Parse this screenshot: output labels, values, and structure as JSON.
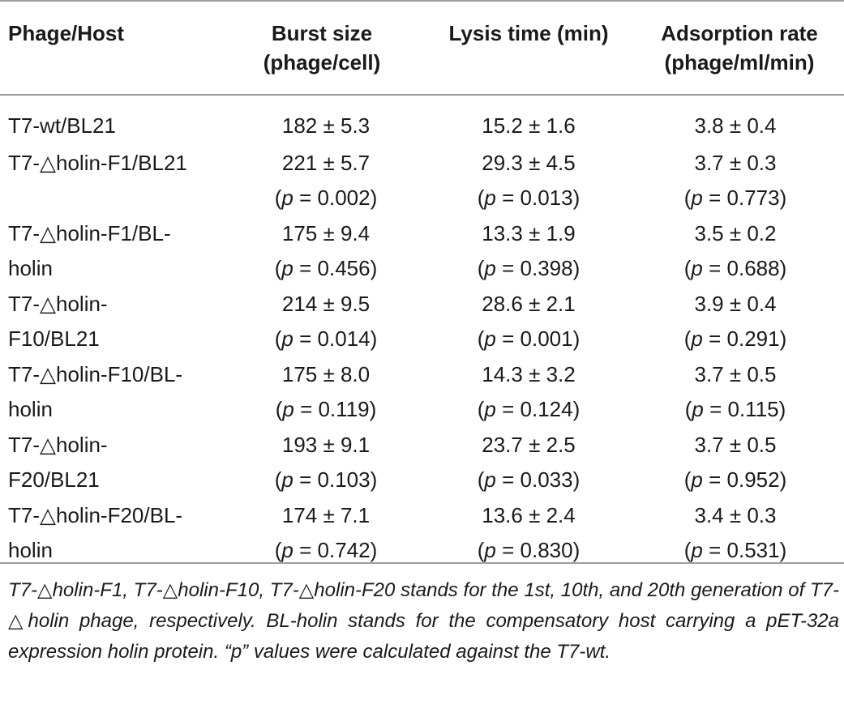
{
  "headers": {
    "phage_host": "Phage/Host",
    "burst_line1": "Burst size",
    "burst_line2": "(phage/cell)",
    "lysis": "Lysis time (min)",
    "adsorption_line1": "Adsorption rate",
    "adsorption_line2": "(phage/ml/min)"
  },
  "rows": [
    {
      "name_line1": "T7-wt/BL21",
      "name_line2": "",
      "burst": "182 ± 5.3",
      "burst_p": "",
      "lysis": "15.2 ± 1.6",
      "lysis_p": "",
      "adsorption": "3.8 ± 0.4",
      "adsorption_p": ""
    },
    {
      "name_line1": "T7-△holin-F1/BL21",
      "name_line2": "",
      "burst": "221 ± 5.7",
      "burst_p": "= 0.002)",
      "lysis": "29.3 ± 4.5",
      "lysis_p": "= 0.013)",
      "adsorption": "3.7 ± 0.3",
      "adsorption_p": "= 0.773)"
    },
    {
      "name_line1": "T7-△holin-F1/BL-",
      "name_line2": "holin",
      "burst": "175 ± 9.4",
      "burst_p": "= 0.456)",
      "lysis": "13.3 ± 1.9",
      "lysis_p": "= 0.398)",
      "adsorption": "3.5 ± 0.2",
      "adsorption_p": "= 0.688)"
    },
    {
      "name_line1": "T7-△holin-",
      "name_line2": "F10/BL21",
      "burst": "214 ± 9.5",
      "burst_p": "= 0.014)",
      "lysis": "28.6 ± 2.1",
      "lysis_p": "= 0.001)",
      "adsorption": "3.9 ± 0.4",
      "adsorption_p": "= 0.291)"
    },
    {
      "name_line1": "T7-△holin-F10/BL-",
      "name_line2": "holin",
      "burst": "175 ± 8.0",
      "burst_p": "= 0.119)",
      "lysis": "14.3 ± 3.2",
      "lysis_p": "= 0.124)",
      "adsorption": "3.7 ± 0.5",
      "adsorption_p": "= 0.115)"
    },
    {
      "name_line1": "T7-△holin-",
      "name_line2": "F20/BL21",
      "burst": "193 ± 9.1",
      "burst_p": "= 0.103)",
      "lysis": "23.7 ± 2.5",
      "lysis_p": "= 0.033)",
      "adsorption": "3.7 ± 0.5",
      "adsorption_p": "= 0.952)"
    },
    {
      "name_line1": "T7-△holin-F20/BL-",
      "name_line2": "holin",
      "burst": "174 ± 7.1",
      "burst_p": "= 0.742)",
      "lysis": "13.6 ± 2.4",
      "lysis_p": "= 0.830)",
      "adsorption": "3.4 ± 0.3",
      "adsorption_p": "= 0.531)"
    }
  ],
  "p_symbol": "p",
  "footnote": "T7-△holin-F1, T7-△holin-F10, T7-△holin-F20 stands for the 1st, 10th, and 20th generation of T7-△holin phage, respectively. BL-holin stands for the compensatory host carrying a pET-32a expression holin protein. “p” values were calculated against the T7-wt."
}
